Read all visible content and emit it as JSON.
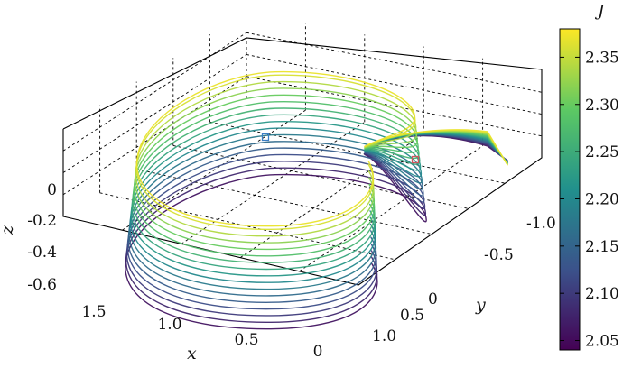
{
  "chart_data": {
    "type": "3d-line",
    "xlabel": "x",
    "ylabel": "y",
    "zlabel": "z",
    "colorbar_label": "J",
    "colorbar_ticks": [
      "2.05",
      "2.10",
      "2.15",
      "2.20",
      "2.25",
      "2.30",
      "2.35"
    ],
    "colorbar_range": [
      2.04,
      2.38
    ],
    "colormap": [
      "#440154",
      "#3b528b",
      "#21908d",
      "#5dc963",
      "#fde725"
    ],
    "x_ticks": [
      "1.5",
      "1.0",
      "0.5",
      "0"
    ],
    "y_ticks": [
      "1.0",
      "0.5",
      "0",
      "-0.5",
      "-1.0"
    ],
    "z_ticks": [
      "0",
      "-0.2",
      "-0.4",
      "-0.6"
    ],
    "grid": true,
    "series": [
      {
        "J": 2.06
      },
      {
        "J": 2.08
      },
      {
        "J": 2.1
      },
      {
        "J": 2.12
      },
      {
        "J": 2.14
      },
      {
        "J": 2.16
      },
      {
        "J": 2.18
      },
      {
        "J": 2.2
      },
      {
        "J": 2.22
      },
      {
        "J": 2.24
      },
      {
        "J": 2.26
      },
      {
        "J": 2.28
      },
      {
        "J": 2.3
      },
      {
        "J": 2.32
      },
      {
        "J": 2.34
      },
      {
        "J": 2.36
      },
      {
        "J": 2.37
      }
    ],
    "markers": [
      {
        "color": "#3a7dc4"
      },
      {
        "color": "#d0565e"
      }
    ]
  }
}
